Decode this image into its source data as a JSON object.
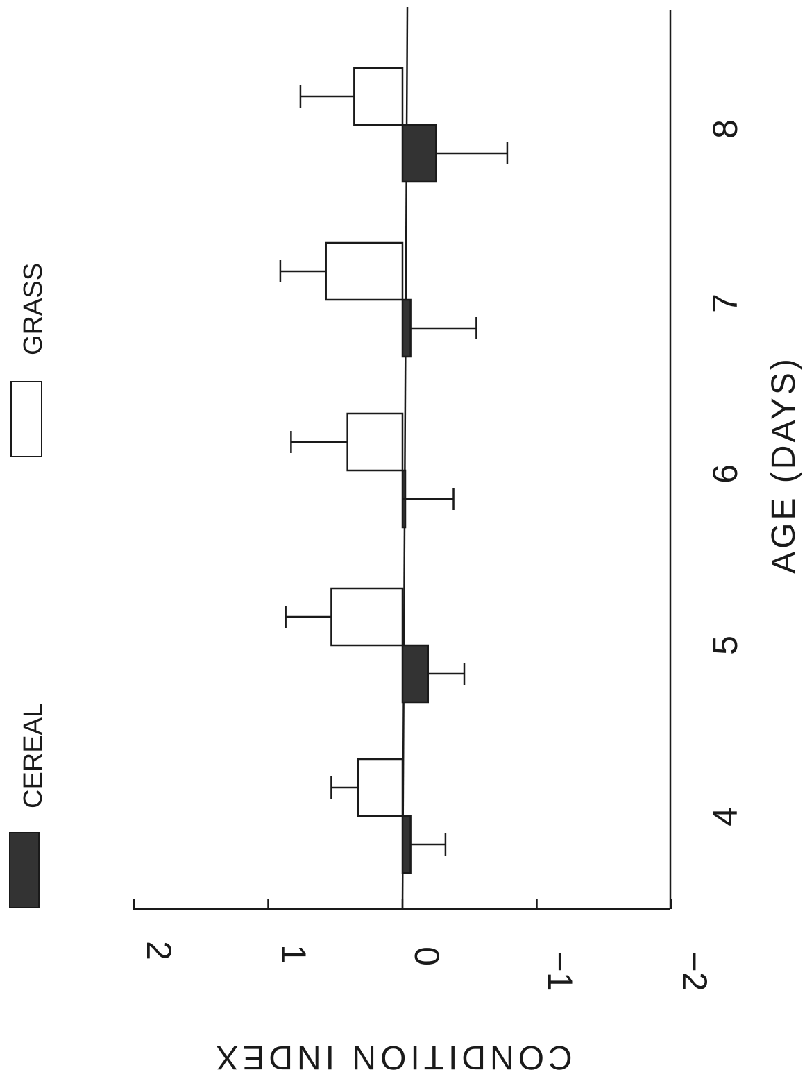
{
  "chart_data": {
    "type": "bar",
    "orientation": "rotated 90 degrees clockwise (categories along the vertical page axis, values along the horizontal page axis)",
    "xlabel": "AGE (DAYS)",
    "ylabel": "CONDITION INDEX",
    "categories": [
      "4",
      "5",
      "6",
      "7",
      "8"
    ],
    "ylim": [
      -2,
      2
    ],
    "yticks": [
      "2",
      "1",
      "0",
      "−1",
      "−2"
    ],
    "grid": false,
    "legend_position": "top",
    "series": [
      {
        "name": "CEREAL",
        "color": "#333333",
        "values": [
          -0.06,
          -0.19,
          0.0,
          -0.06,
          -0.25
        ],
        "errors": [
          0.26,
          0.27,
          0.38,
          0.49,
          0.53
        ]
      },
      {
        "name": "GRASS",
        "color": "#ffffff",
        "values": [
          0.33,
          0.53,
          0.41,
          0.57,
          0.36
        ],
        "errors": [
          0.2,
          0.34,
          0.42,
          0.34,
          0.4
        ]
      }
    ]
  }
}
